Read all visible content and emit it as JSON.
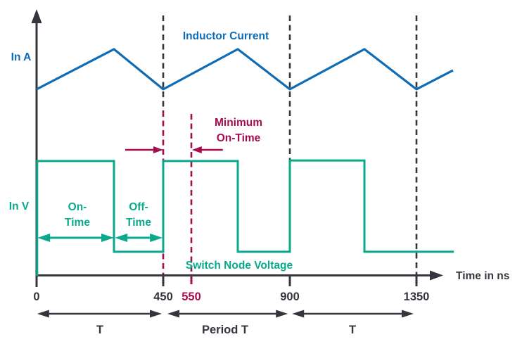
{
  "colors": {
    "dark": "#35363D",
    "blue": "#0E6CB6",
    "green": "#0BA98C",
    "crimson": "#A60D4E",
    "background": "#FFFFFF"
  },
  "labels": {
    "y_axis_current": "In A",
    "y_axis_voltage": "In V",
    "series_current": "Inductor Current",
    "series_voltage": "Switch Node Voltage",
    "min_on_time_line1": "Minimum",
    "min_on_time_line2": "On-Time",
    "on_time_line1": "On-",
    "on_time_line2": "Time",
    "off_time_line1": "Off-",
    "off_time_line2": "Time",
    "x_axis_label": "Time in ns",
    "t_left": "T",
    "period_t": "Period T",
    "t_right": "T"
  },
  "chart_data": {
    "type": "line",
    "title": "",
    "xlabel": "Time in ns",
    "ylabel_top": "In A",
    "ylabel_bottom": "In V",
    "x_range_ns": [
      0,
      1480
    ],
    "grid": false,
    "x_ticks": [
      {
        "label": "0",
        "t": 0,
        "color": "dark"
      },
      {
        "label": "450",
        "t": 450,
        "color": "dark"
      },
      {
        "label": "550",
        "t": 550,
        "color": "crimson"
      },
      {
        "label": "900",
        "t": 900,
        "color": "dark"
      },
      {
        "label": "1350",
        "t": 1350,
        "color": "dark"
      }
    ],
    "series": [
      {
        "name": "Inductor Current",
        "color": "#0E6CB6",
        "units": "arbitrary (no numeric y scale shown)",
        "points": [
          [
            0,
            0.707
          ],
          [
            275,
            0.859
          ],
          [
            450,
            0.707
          ],
          [
            715,
            0.859
          ],
          [
            900,
            0.707
          ],
          [
            1165,
            0.859
          ],
          [
            1350,
            0.707
          ],
          [
            1480,
            0.779
          ]
        ]
      },
      {
        "name": "Switch Node Voltage",
        "color": "#0BA98C",
        "units": "arbitrary (no numeric y scale shown)",
        "points": [
          [
            2,
            0
          ],
          [
            2,
            0.435
          ],
          [
            275,
            0.435
          ],
          [
            275,
            0.091
          ],
          [
            450,
            0.091
          ],
          [
            450,
            0.435
          ],
          [
            715,
            0.435
          ],
          [
            715,
            0.091
          ],
          [
            900,
            0.091
          ],
          [
            900,
            0.437
          ],
          [
            1165,
            0.437
          ],
          [
            1165,
            0.091
          ],
          [
            1483,
            0.091
          ]
        ]
      }
    ],
    "annotations": {
      "on_time_ns": 275,
      "off_time_ns": 175,
      "switching_period_ns": 450,
      "min_on_time_ns": 100,
      "dashed_segments": [
        {
          "t": 450,
          "color": "dark",
          "y1": 22,
          "y2": 158
        },
        {
          "t": 450,
          "color": "crimson",
          "y1": 158,
          "y2": 390
        },
        {
          "t": 550,
          "color": "crimson",
          "y1": 162,
          "y2": 403
        },
        {
          "t": 900,
          "color": "dark",
          "y1": 22,
          "y2": 229
        },
        {
          "t": 1350,
          "color": "dark",
          "y1": 22,
          "y2": 399
        }
      ],
      "measures": [
        {
          "name": "t-on-measure",
          "from_ns": 3,
          "to_ns": 275,
          "y": 338,
          "color": "green"
        },
        {
          "name": "t-off-measure",
          "from_ns": 278,
          "to_ns": 448,
          "y": 338,
          "color": "green"
        },
        {
          "name": "period-1-measure",
          "from_ns": 2,
          "to_ns": 445,
          "y": 446,
          "color": "dark"
        },
        {
          "name": "period-2-measure",
          "from_ns": 465,
          "to_ns": 893,
          "y": 446,
          "color": "dark"
        },
        {
          "name": "period-3-measure",
          "from_ns": 908,
          "to_ns": 1340,
          "y": 446,
          "color": "dark"
        }
      ],
      "pointers": [
        {
          "name": "min-on-time-left-pointer",
          "tip_ns": 450,
          "tail_ns": 315,
          "y": 213,
          "color": "crimson"
        },
        {
          "name": "min-on-time-right-pointer",
          "tip_ns": 552,
          "tail_ns": 662,
          "y": 213,
          "color": "crimson"
        }
      ]
    }
  }
}
